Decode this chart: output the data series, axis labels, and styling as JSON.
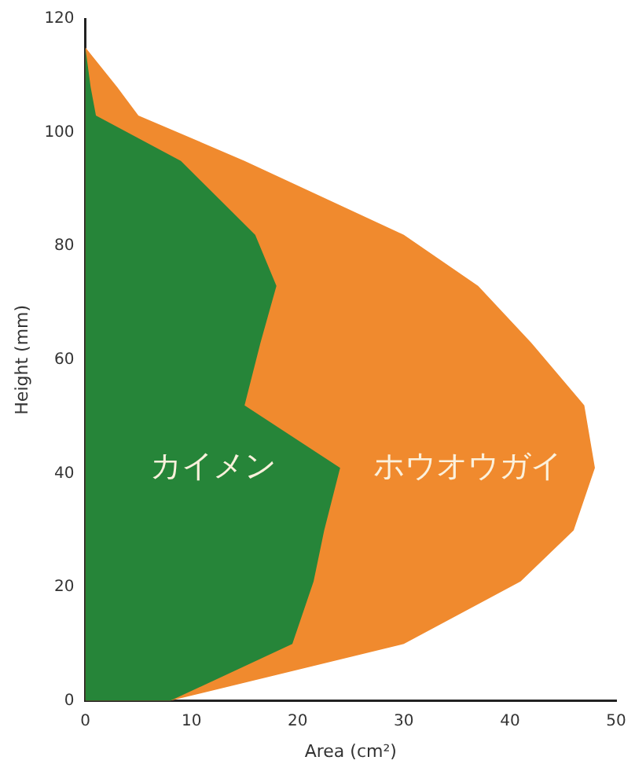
{
  "chart_data": {
    "type": "area",
    "orientation": "horizontal",
    "xlabel": "Area (cm²)",
    "ylabel": "Height (mm)",
    "x": [
      0,
      10,
      21,
      30,
      41,
      52,
      63,
      73,
      82,
      95,
      103,
      108,
      115
    ],
    "series": [
      {
        "name": "ホウオウガイ",
        "color": "#f08a2e",
        "values": [
          8,
          30,
          41,
          46,
          48,
          47,
          42,
          37,
          30,
          15,
          5,
          3,
          0
        ]
      },
      {
        "name": "カイメン",
        "color": "#268539",
        "values": [
          8,
          19.5,
          21.5,
          22.5,
          24,
          15,
          16.5,
          18,
          16,
          9,
          1,
          0.5,
          0
        ]
      }
    ],
    "xlim": [
      0,
      50
    ],
    "xticks": [
      0,
      10,
      20,
      30,
      40,
      50
    ],
    "ylim": [
      0,
      120
    ],
    "yticks": [
      0,
      20,
      40,
      60,
      80,
      100,
      120
    ],
    "grid": false,
    "legend": false
  }
}
